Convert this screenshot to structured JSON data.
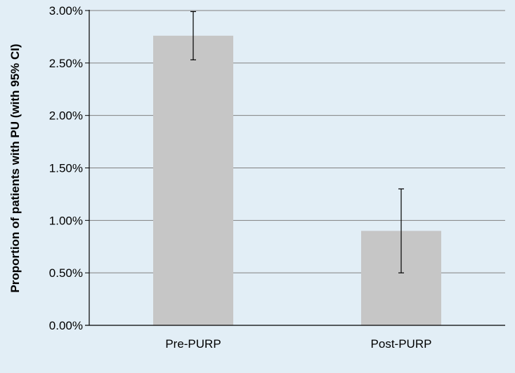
{
  "chart_data": {
    "type": "bar",
    "title": "",
    "xlabel": "",
    "ylabel": "Proportion of patients with PU (with 95% CI)",
    "categories": [
      "Pre-PURP",
      "Post-PURP"
    ],
    "values": [
      2.76,
      0.9
    ],
    "error_low": [
      2.53,
      0.5
    ],
    "error_high": [
      2.99,
      1.3
    ],
    "ylim": [
      0,
      3.0
    ],
    "yticks": [
      0,
      0.5,
      1.0,
      1.5,
      2.0,
      2.5,
      3.0
    ],
    "ytick_labels": [
      "0.00%",
      "0.50%",
      "1.00%",
      "1.50%",
      "2.00%",
      "2.50%",
      "3.00%"
    ],
    "grid": true,
    "legend": "none",
    "colors": {
      "background": "#e2eef6",
      "bar": "#c6c6c6",
      "grid": "#808080",
      "axis": "#000000",
      "errorbar": "#000000"
    }
  }
}
